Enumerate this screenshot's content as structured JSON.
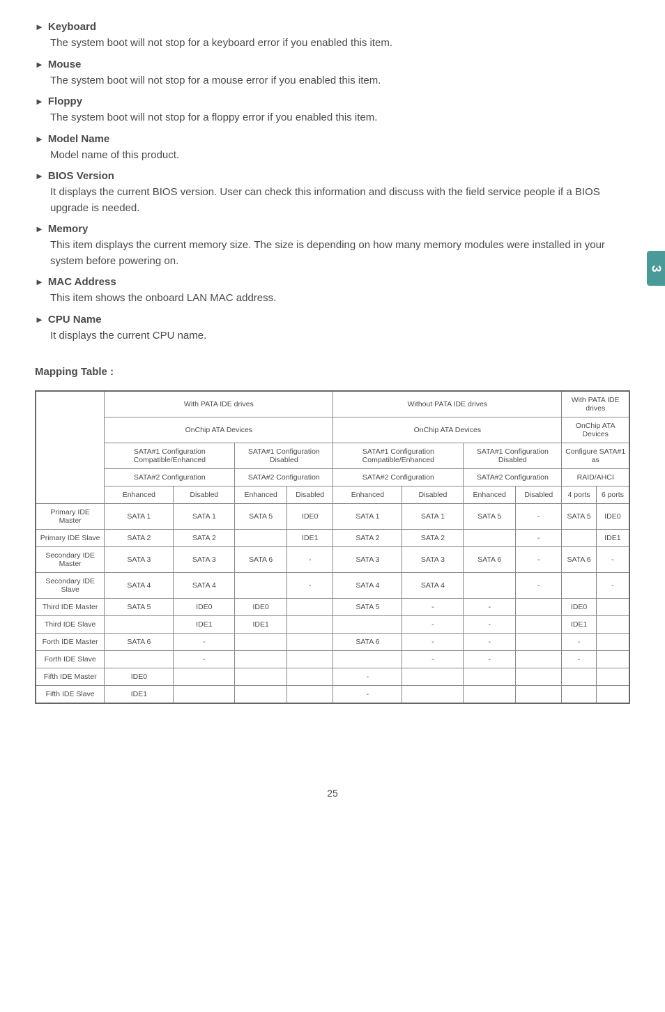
{
  "sideTab": "3",
  "sections": [
    {
      "title": "Keyboard",
      "desc": "The system boot will not stop for a keyboard error if you enabled this item."
    },
    {
      "title": "Mouse",
      "desc": "The system boot will not stop for a mouse error if you enabled this item."
    },
    {
      "title": "Floppy",
      "desc": "The system boot will not stop for a floppy error if you enabled this item."
    },
    {
      "title": "Model Name",
      "desc": "Model name of this product."
    },
    {
      "title": "BIOS Version",
      "desc": "It displays the current BIOS version. User can check this information and discuss with the field service people if a BIOS upgrade is needed."
    },
    {
      "title": "Memory",
      "desc": "This item displays the current memory size. The size is depending on how many memory modules were installed in your system before powering on."
    },
    {
      "title": "MAC Address",
      "desc": "This item shows the onboard LAN MAC address."
    },
    {
      "title": "CPU Name",
      "desc": "It displays the current CPU name."
    }
  ],
  "mappingTitle": "Mapping Table :",
  "table": {
    "groupHeaders": {
      "withPata": "With PATA IDE drives",
      "withoutPata": "Without PATA IDE drives",
      "withPataDrives": "With PATA IDE drives",
      "onchip1": "OnChip ATA Devices",
      "onchip2": "OnChip ATA Devices",
      "onchipAta": "OnChip ATA Devices",
      "sata1CompEnh1": "SATA#1 Configuration Compatible/Enhanced",
      "sata1Disabled1": "SATA#1 Configuration Disabled",
      "sata1CompEnh2": "SATA#1 Configuration Compatible/Enhanced",
      "sata1Disabled2": "SATA#1 Configuration Disabled",
      "configure": "Configure SATA#1 as",
      "sata2conf": "SATA#2 Configuration",
      "raidahci": "RAID/AHCI",
      "enhanced": "Enhanced",
      "disabled": "Disabled",
      "ports4": "4 ports",
      "ports6": "6 ports"
    },
    "rows": [
      {
        "label": "Primary IDE Master",
        "c": [
          "SATA 1",
          "SATA 1",
          "SATA 5",
          "IDE0",
          "SATA 1",
          "SATA 1",
          "SATA 5",
          "-",
          "SATA 5",
          "IDE0"
        ]
      },
      {
        "label": "Primary IDE Slave",
        "c": [
          "SATA 2",
          "SATA 2",
          "",
          "IDE1",
          "SATA 2",
          "SATA 2",
          "",
          "-",
          "",
          "IDE1"
        ]
      },
      {
        "label": "Secondary IDE Master",
        "c": [
          "SATA 3",
          "SATA 3",
          "SATA 6",
          "-",
          "SATA 3",
          "SATA 3",
          "SATA 6",
          "-",
          "SATA 6",
          "-"
        ]
      },
      {
        "label": "Secondary IDE Slave",
        "c": [
          "SATA 4",
          "SATA 4",
          "",
          "-",
          "SATA 4",
          "SATA 4",
          "",
          "-",
          "",
          "-"
        ]
      },
      {
        "label": "Third IDE Master",
        "c": [
          "SATA 5",
          "IDE0",
          "IDE0",
          "",
          "SATA 5",
          "-",
          "-",
          "",
          "IDE0",
          ""
        ]
      },
      {
        "label": "Third IDE Slave",
        "c": [
          "",
          "IDE1",
          "IDE1",
          "",
          "",
          "-",
          "-",
          "",
          "IDE1",
          ""
        ]
      },
      {
        "label": "Forth IDE Master",
        "c": [
          "SATA 6",
          "-",
          "",
          "",
          "SATA 6",
          "-",
          "-",
          "",
          "-",
          ""
        ]
      },
      {
        "label": "Forth IDE Slave",
        "c": [
          "",
          "-",
          "",
          "",
          "",
          "-",
          "-",
          "",
          "-",
          ""
        ]
      },
      {
        "label": "Fifth IDE Master",
        "c": [
          "IDE0",
          "",
          "",
          "",
          "-",
          "",
          "",
          "",
          "",
          ""
        ]
      },
      {
        "label": "Fifth IDE Slave",
        "c": [
          "IDE1",
          "",
          "",
          "",
          "-",
          "",
          "",
          "",
          "",
          ""
        ]
      }
    ]
  },
  "pageNum": "25"
}
